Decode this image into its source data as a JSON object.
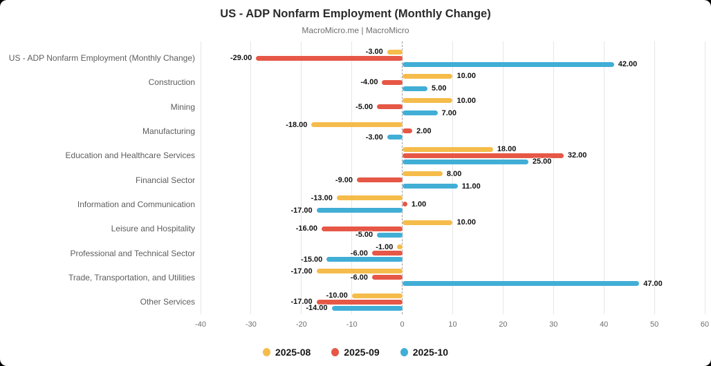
{
  "title": "US - ADP Nonfarm Employment (Monthly Change)",
  "subtitle": "MacroMicro.me | MacroMicro",
  "chart_data": {
    "type": "bar",
    "orientation": "horizontal",
    "title": "US - ADP Nonfarm Employment (Monthly Change)",
    "subtitle": "MacroMicro.me | MacroMicro",
    "categories": [
      "US - ADP Nonfarm Employment (Monthly Change)",
      "Construction",
      "Mining",
      "Manufacturing",
      "Education and Healthcare Services",
      "Financial Sector",
      "Information and Communication",
      "Leisure and Hospitality",
      "Professional and Technical Sector",
      "Trade, Transportation, and Utilities",
      "Other Services"
    ],
    "series": [
      {
        "name": "2025-08",
        "color": "#F5BC4B",
        "values": [
          -3,
          10,
          10,
          -18,
          18,
          8,
          -13,
          10,
          -1,
          -17,
          -10
        ]
      },
      {
        "name": "2025-09",
        "color": "#E65746",
        "values": [
          -29,
          -4,
          -5,
          2,
          32,
          -9,
          1,
          -16,
          -6,
          -6,
          -17
        ]
      },
      {
        "name": "2025-10",
        "color": "#41AED6",
        "values": [
          42,
          5,
          7,
          -3,
          25,
          11,
          -17,
          -5,
          -15,
          47,
          -14
        ]
      }
    ],
    "xlim": [
      -40,
      60
    ],
    "xticks": [
      -40,
      -30,
      -20,
      -10,
      0,
      10,
      20,
      30,
      40,
      50,
      60
    ],
    "value_labels": "two-decimal",
    "grid": true,
    "zero_line": "dashed",
    "legend_position": "bottom",
    "background": "#ffffff",
    "corner_background": "#000000"
  }
}
